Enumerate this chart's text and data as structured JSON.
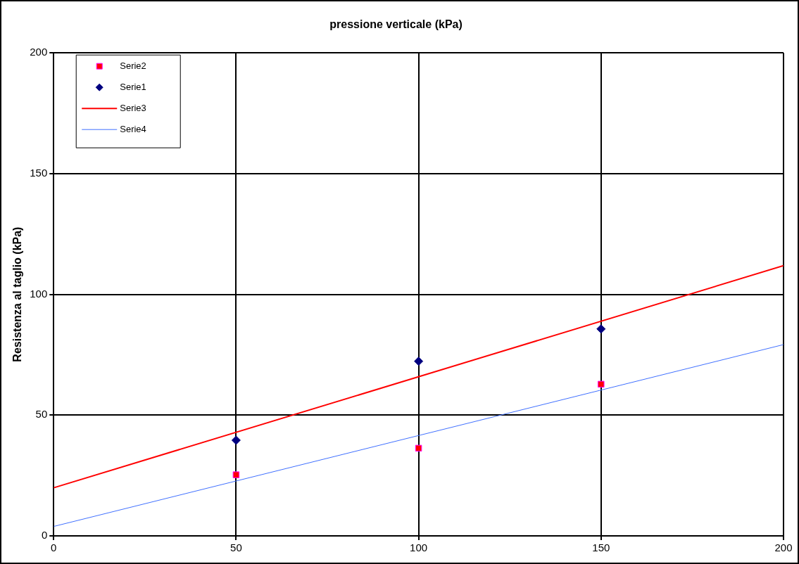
{
  "chart_data": {
    "type": "scatter",
    "title": "pressione verticale (kPa)",
    "ylabel": "Resistenza al taglio (kPa)",
    "xlim": [
      0,
      200
    ],
    "xticks": [
      0,
      50,
      100,
      150,
      200
    ],
    "ylim": [
      0,
      200
    ],
    "yticks": [
      0,
      50,
      100,
      150,
      200
    ],
    "grid": true,
    "legend": "top left",
    "series": [
      {
        "name": "Serie2",
        "type": "scatter",
        "marker": "square",
        "color": "#ff0000",
        "x": [
          50,
          100,
          150
        ],
        "values": [
          25.3,
          36.3,
          62.8
        ]
      },
      {
        "name": "Serie1",
        "type": "scatter",
        "marker": "diamond",
        "color": "#000080",
        "x": [
          50,
          100,
          150
        ],
        "values": [
          39.6,
          72.3,
          85.7
        ]
      },
      {
        "name": "Serie3",
        "type": "line",
        "marker": "none",
        "color": "#ff0000",
        "x": [
          0,
          200
        ],
        "values": [
          19.9,
          111.9
        ]
      },
      {
        "name": "Serie4",
        "type": "line",
        "marker": "none",
        "color": "#4070ff",
        "x": [
          0,
          200
        ],
        "values": [
          3.9,
          79.2
        ]
      }
    ]
  }
}
